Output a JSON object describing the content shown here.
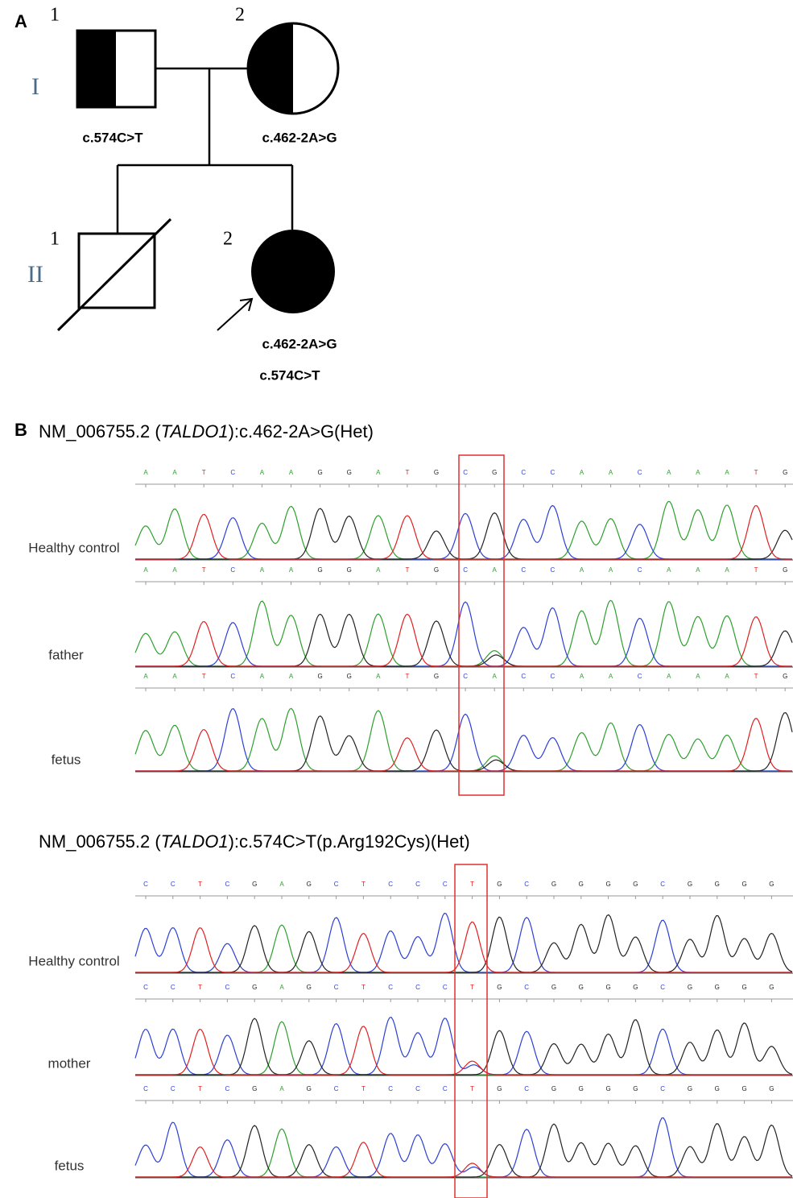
{
  "panel_a": {
    "label": "A",
    "generations": [
      "I",
      "II"
    ],
    "individuals": [
      {
        "number": "1",
        "variants": [
          "c.574C>T"
        ]
      },
      {
        "number": "2",
        "variants": [
          "c.462-2A>G"
        ]
      },
      {
        "number": "1",
        "variants": []
      },
      {
        "number": "2",
        "variants": [
          "c.462-2A>G",
          "c.574C>T"
        ]
      }
    ]
  },
  "panel_b": {
    "label": "B",
    "sections": [
      {
        "title": {
          "prefix": "NM_006755.2 (",
          "gene": "TALDO1",
          "suffix": "):c.462-2A>G(Het)"
        },
        "tracks": [
          {
            "label": "Healthy control",
            "bases": [
              "A",
              "A",
              "T",
              "C",
              "A",
              "A",
              "G",
              "G",
              "A",
              "T",
              "G",
              "C",
              "G",
              "C",
              "C",
              "A",
              "A",
              "C",
              "A",
              "A",
              "A",
              "T",
              "G"
            ]
          },
          {
            "label": "father",
            "bases": [
              "A",
              "A",
              "T",
              "C",
              "A",
              "A",
              "G",
              "G",
              "A",
              "T",
              "G",
              "C",
              "A",
              "C",
              "C",
              "A",
              "A",
              "C",
              "A",
              "A",
              "A",
              "T",
              "G"
            ]
          },
          {
            "label": "fetus",
            "bases": [
              "A",
              "A",
              "T",
              "C",
              "A",
              "A",
              "G",
              "G",
              "A",
              "T",
              "G",
              "C",
              "A",
              "C",
              "C",
              "A",
              "A",
              "C",
              "A",
              "A",
              "A",
              "T",
              "G"
            ]
          }
        ]
      },
      {
        "title": {
          "prefix": "NM_006755.2 (",
          "gene": "TALDO1",
          "suffix": "):c.574C>T(p.Arg192Cys)(Het)"
        },
        "tracks": [
          {
            "label": "Healthy control",
            "bases": [
              "C",
              "C",
              "T",
              "C",
              "G",
              "A",
              "G",
              "C",
              "T",
              "C",
              "C",
              "C",
              "T",
              "G",
              "C",
              "G",
              "G",
              "G",
              "G",
              "C",
              "G",
              "G",
              "G",
              "G"
            ]
          },
          {
            "label": "mother",
            "bases": [
              "C",
              "C",
              "T",
              "C",
              "G",
              "A",
              "G",
              "C",
              "T",
              "C",
              "C",
              "C",
              "T",
              "G",
              "C",
              "G",
              "G",
              "G",
              "G",
              "C",
              "G",
              "G",
              "G",
              "G"
            ]
          },
          {
            "label": "fetus",
            "bases": [
              "C",
              "C",
              "T",
              "C",
              "G",
              "A",
              "G",
              "C",
              "T",
              "C",
              "C",
              "C",
              "T",
              "G",
              "C",
              "G",
              "G",
              "G",
              "G",
              "C",
              "G",
              "G",
              "G",
              "G"
            ]
          }
        ]
      }
    ]
  }
}
